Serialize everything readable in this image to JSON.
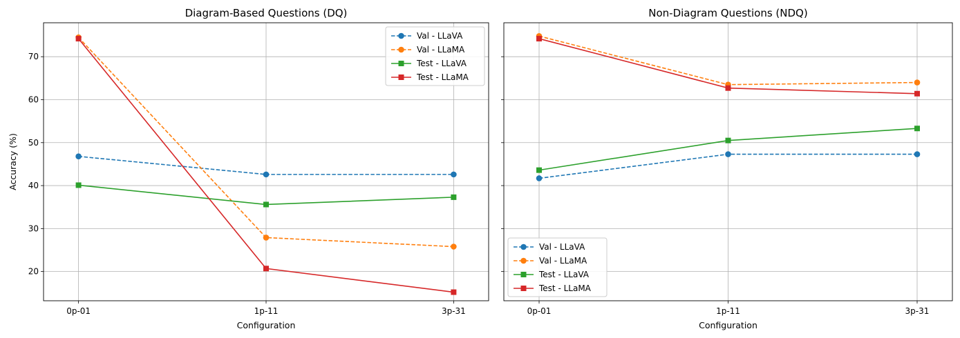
{
  "chart_data": [
    {
      "type": "line",
      "title": "Diagram-Based Questions (DQ)",
      "xlabel": "Configuration",
      "ylabel": "Accuracy (%)",
      "categories": [
        "0p-01",
        "1p-11",
        "3p-31"
      ],
      "ylim": [
        13.2,
        77.9
      ],
      "yticks": [
        "20",
        "30",
        "40",
        "50",
        "60",
        "70"
      ],
      "grid": true,
      "legend_position": "upper right",
      "series": [
        {
          "name": "Val - LLaVA",
          "values": [
            46.8,
            42.6,
            42.6
          ],
          "color": "#1f77b4",
          "linestyle": "dashed",
          "marker": "circle"
        },
        {
          "name": "Val - LLaMA",
          "values": [
            74.5,
            27.9,
            25.8
          ],
          "color": "#ff7f0e",
          "linestyle": "dashed",
          "marker": "circle"
        },
        {
          "name": "Test - LLaVA",
          "values": [
            40.1,
            35.6,
            37.3
          ],
          "color": "#2ca02c",
          "linestyle": "solid",
          "marker": "square"
        },
        {
          "name": "Test - LLaMA",
          "values": [
            74.2,
            20.7,
            15.2
          ],
          "color": "#d62728",
          "linestyle": "solid",
          "marker": "square"
        }
      ]
    },
    {
      "type": "line",
      "title": "Non-Diagram Questions (NDQ)",
      "xlabel": "Configuration",
      "ylabel": "",
      "categories": [
        "0p-01",
        "1p-11",
        "3p-31"
      ],
      "ylim": [
        13.2,
        77.9
      ],
      "yticks": [
        "20",
        "30",
        "40",
        "50",
        "60",
        "70"
      ],
      "grid": true,
      "legend_position": "lower left",
      "series": [
        {
          "name": "Val - LLaVA",
          "values": [
            41.7,
            47.3,
            47.3
          ],
          "color": "#1f77b4",
          "linestyle": "dashed",
          "marker": "circle"
        },
        {
          "name": "Val - LLaMA",
          "values": [
            74.8,
            63.5,
            64.0
          ],
          "color": "#ff7f0e",
          "linestyle": "dashed",
          "marker": "circle"
        },
        {
          "name": "Test - LLaVA",
          "values": [
            43.6,
            50.5,
            53.3
          ],
          "color": "#2ca02c",
          "linestyle": "solid",
          "marker": "square"
        },
        {
          "name": "Test - LLaMA",
          "values": [
            74.2,
            62.7,
            61.4
          ],
          "color": "#d62728",
          "linestyle": "solid",
          "marker": "square"
        }
      ]
    }
  ]
}
